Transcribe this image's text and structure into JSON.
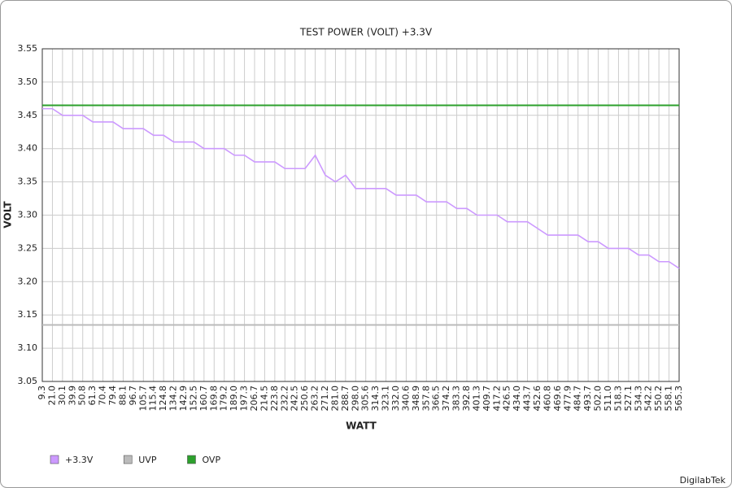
{
  "chart_data": {
    "type": "line",
    "title": "TEST POWER (VOLT) +3.3V",
    "x_label": "WATT",
    "y_label": "VOLT",
    "categories": [
      "9.3",
      "21.0",
      "30.1",
      "39.9",
      "50.8",
      "61.3",
      "70.4",
      "79.4",
      "88.1",
      "96.7",
      "105.7",
      "115.4",
      "124.8",
      "134.2",
      "142.9",
      "152.5",
      "160.7",
      "169.8",
      "179.2",
      "189.0",
      "197.3",
      "206.7",
      "214.5",
      "223.8",
      "232.2",
      "242.5",
      "250.6",
      "263.2",
      "271.2",
      "281.0",
      "288.7",
      "298.0",
      "305.6",
      "314.3",
      "323.1",
      "332.0",
      "340.6",
      "348.9",
      "357.8",
      "366.5",
      "374.2",
      "383.3",
      "392.8",
      "401.3",
      "409.7",
      "417.2",
      "426.5",
      "434.0",
      "443.7",
      "452.6",
      "460.8",
      "469.6",
      "477.9",
      "484.7",
      "493.7",
      "502.0",
      "511.0",
      "518.3",
      "527.1",
      "534.3",
      "542.2",
      "550.2",
      "558.1",
      "565.3"
    ],
    "series": [
      {
        "name": "+3.3V",
        "color": "#cc99ff",
        "values": [
          3.46,
          3.46,
          3.45,
          3.45,
          3.45,
          3.44,
          3.44,
          3.44,
          3.43,
          3.43,
          3.43,
          3.42,
          3.42,
          3.41,
          3.41,
          3.41,
          3.4,
          3.4,
          3.4,
          3.39,
          3.39,
          3.38,
          3.38,
          3.38,
          3.37,
          3.37,
          3.37,
          3.39,
          3.36,
          3.35,
          3.36,
          3.34,
          3.34,
          3.34,
          3.34,
          3.33,
          3.33,
          3.33,
          3.32,
          3.32,
          3.32,
          3.31,
          3.31,
          3.3,
          3.3,
          3.3,
          3.29,
          3.29,
          3.29,
          3.28,
          3.27,
          3.27,
          3.27,
          3.27,
          3.26,
          3.26,
          3.25,
          3.25,
          3.25,
          3.24,
          3.24,
          3.23,
          3.23,
          3.22
        ]
      },
      {
        "name": "UVP",
        "color": "#bbbbbb",
        "value": 3.135
      },
      {
        "name": "OVP",
        "color": "#2ca02c",
        "value": 3.465
      }
    ],
    "ylim": [
      3.05,
      3.55
    ],
    "yticks": [
      {
        "value": 3.05,
        "label": "3.05"
      },
      {
        "value": 3.1,
        "label": "3.10"
      },
      {
        "value": 3.15,
        "label": "3.15"
      },
      {
        "value": 3.2,
        "label": "3.20"
      },
      {
        "value": 3.25,
        "label": "3.25"
      },
      {
        "value": 3.3,
        "label": "3.30"
      },
      {
        "value": 3.35,
        "label": "3.35"
      },
      {
        "value": 3.4,
        "label": "3.40"
      },
      {
        "value": 3.45,
        "label": "3.45"
      },
      {
        "value": 3.5,
        "label": "3.50"
      },
      {
        "value": 3.55,
        "label": "3.55"
      }
    ],
    "grid": true,
    "legend": "bottom-left",
    "credit": "DigilabTek"
  }
}
